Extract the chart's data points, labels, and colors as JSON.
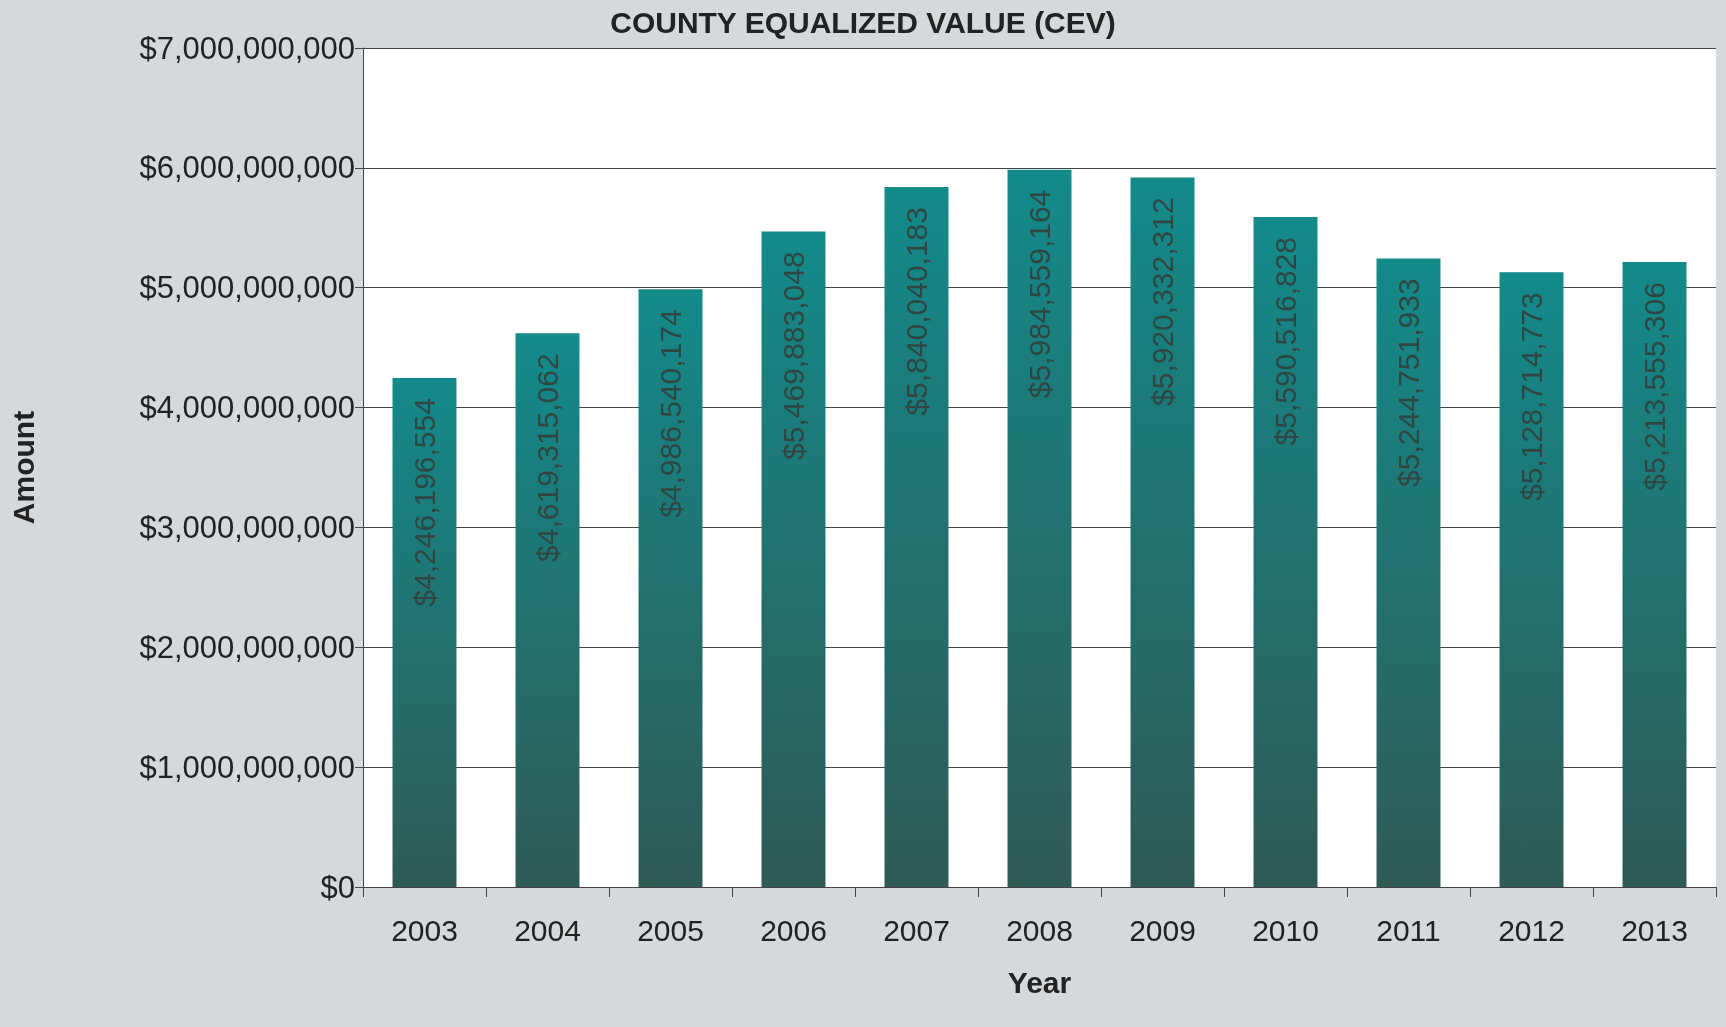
{
  "chart_data": {
    "type": "bar",
    "title": "COUNTY EQUALIZED VALUE (CEV)",
    "xlabel": "Year",
    "ylabel": "Amount",
    "categories": [
      "2003",
      "2004",
      "2005",
      "2006",
      "2007",
      "2008",
      "2009",
      "2010",
      "2011",
      "2012",
      "2013"
    ],
    "values": [
      4246196554,
      4619315062,
      4986540174,
      5469883048,
      5840040183,
      5984559164,
      5920332312,
      5590516828,
      5244751933,
      5128714773,
      5213555306
    ],
    "value_labels": [
      "$4,246,196,554",
      "$4,619,315,062",
      "$4,986,540,174",
      "$5,469,883,048",
      "$5,840,040,183",
      "$5,984,559,164",
      "$5,920,332,312",
      "$5,590,516,828",
      "$5,244,751,933",
      "$5,128,714,773",
      "$5,213,555,306"
    ],
    "color": "#138a8a",
    "grid": "y",
    "ylim": [
      0,
      7000000000
    ],
    "yticks": [
      {
        "value": 0,
        "label": "$0"
      },
      {
        "value": 1000000000,
        "label": "$1,000,000,000"
      },
      {
        "value": 2000000000,
        "label": "$2,000,000,000"
      },
      {
        "value": 3000000000,
        "label": "$3,000,000,000"
      },
      {
        "value": 4000000000,
        "label": "$4,000,000,000"
      },
      {
        "value": 5000000000,
        "label": "$5,000,000,000"
      },
      {
        "value": 6000000000,
        "label": "$6,000,000,000"
      },
      {
        "value": 7000000000,
        "label": "$7,000,000,000"
      }
    ]
  }
}
